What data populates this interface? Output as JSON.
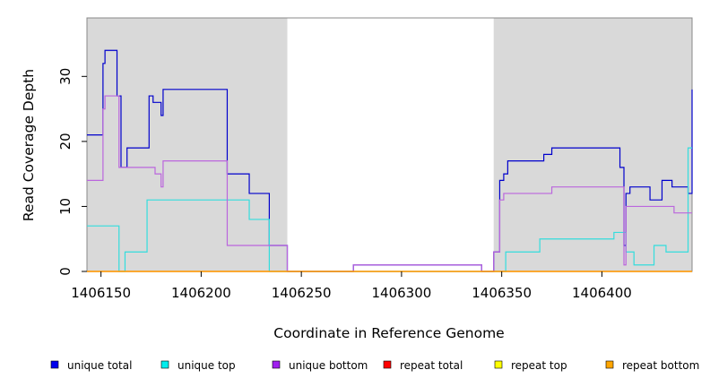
{
  "chart_data": {
    "type": "line",
    "xlabel": "Coordinate in Reference Genome",
    "ylabel": "Read Coverage Depth",
    "xlim": [
      1406143,
      1406445
    ],
    "ylim": [
      0,
      39
    ],
    "x_ticks": [
      1406150,
      1406200,
      1406250,
      1406300,
      1406350,
      1406400
    ],
    "y_ticks": [
      0,
      10,
      20,
      30
    ],
    "shaded_regions": [
      [
        1406143,
        1406243
      ],
      [
        1406346,
        1406445
      ]
    ],
    "colors": {
      "shade": "#d9d9d9",
      "frame": "#888888"
    },
    "series": [
      {
        "name": "unique total",
        "color": "#0000cc",
        "x": [
          1406143,
          1406151,
          1406152,
          1406158,
          1406160,
          1406163,
          1406174,
          1406176,
          1406180,
          1406181,
          1406213,
          1406224,
          1406234,
          1406243,
          1406276,
          1406340,
          1406346,
          1406349,
          1406351,
          1406353,
          1406371,
          1406375,
          1406409,
          1406411,
          1406412,
          1406414,
          1406424,
          1406430,
          1406435,
          1406443,
          1406445
        ],
        "values": [
          21,
          32,
          34,
          27,
          16,
          19,
          27,
          26,
          24,
          28,
          15,
          12,
          4,
          0,
          1,
          0,
          3,
          14,
          15,
          17,
          18,
          19,
          16,
          4,
          12,
          13,
          11,
          14,
          13,
          12,
          28
        ]
      },
      {
        "name": "unique top",
        "color": "#33dddd",
        "x": [
          1406143,
          1406159,
          1406162,
          1406173,
          1406224,
          1406234,
          1406243,
          1406346,
          1406352,
          1406369,
          1406406,
          1406412,
          1406416,
          1406426,
          1406432,
          1406443,
          1406445
        ],
        "values": [
          7,
          0,
          3,
          11,
          8,
          0,
          0,
          0,
          3,
          5,
          6,
          3,
          1,
          4,
          3,
          19,
          19
        ],
        "steps_to_next": true
      },
      {
        "name": "unique bottom",
        "color": "#bb66dd",
        "x": [
          1406143,
          1406151,
          1406152,
          1406159,
          1406173,
          1406177,
          1406180,
          1406181,
          1406213,
          1406243,
          1406276,
          1406340,
          1406346,
          1406349,
          1406351,
          1406372,
          1406375,
          1406409,
          1406411,
          1406412,
          1406436,
          1406445
        ],
        "values": [
          14,
          25,
          27,
          16,
          16,
          15,
          13,
          17,
          4,
          0,
          1,
          0,
          3,
          11,
          12,
          12,
          13,
          13,
          1,
          10,
          9,
          9
        ]
      },
      {
        "name": "repeat total",
        "color": "#ff0000",
        "x": [
          1406143,
          1406445
        ],
        "values": [
          0,
          0
        ]
      },
      {
        "name": "repeat top",
        "color": "#ffff00",
        "x": [
          1406143,
          1406445
        ],
        "values": [
          0,
          0
        ]
      },
      {
        "name": "repeat bottom",
        "color": "#ff9900",
        "x": [
          1406143,
          1406445
        ],
        "values": [
          0,
          0
        ]
      }
    ],
    "legend": {
      "placement": "bottom",
      "entries": [
        {
          "label": "unique total",
          "color": "#0000ee"
        },
        {
          "label": "unique top",
          "color": "#00eeee"
        },
        {
          "label": "unique bottom",
          "color": "#a020f0"
        },
        {
          "label": "repeat total",
          "color": "#ff0000"
        },
        {
          "label": "repeat top",
          "color": "#ffff00"
        },
        {
          "label": "repeat bottom",
          "color": "#ffa500"
        }
      ]
    }
  }
}
